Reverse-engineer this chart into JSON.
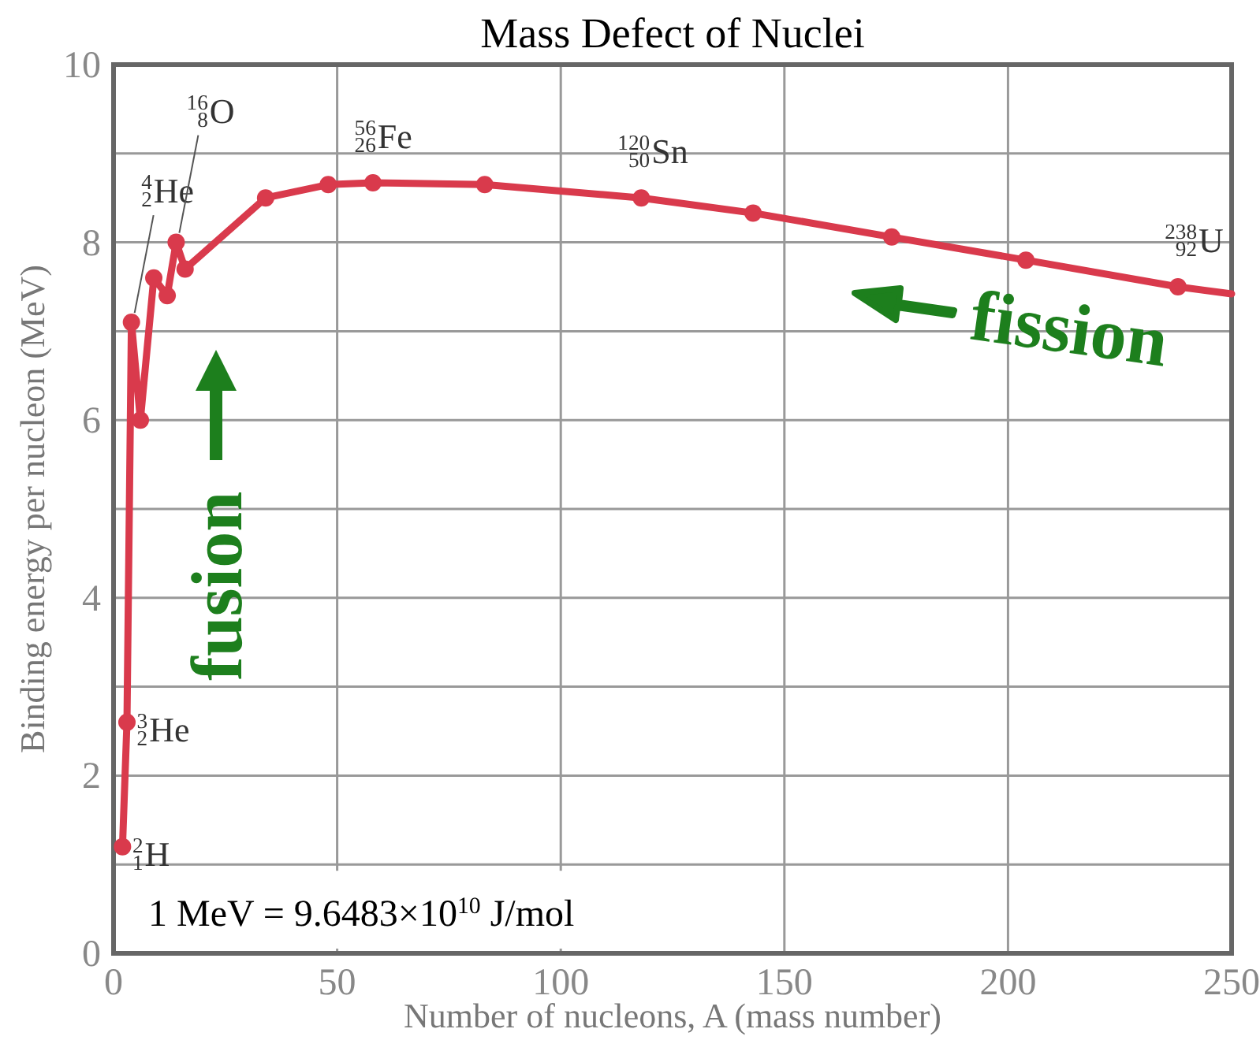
{
  "chart_data": {
    "type": "line",
    "title": "Mass Defect of Nuclei",
    "xlabel": "Number of nucleons, A (mass number)",
    "ylabel": "Binding energy per nucleon (MeV)",
    "xlim": [
      0,
      250
    ],
    "xticks": [
      0,
      50,
      100,
      150,
      200,
      250
    ],
    "ylim": [
      0,
      10
    ],
    "yticks": [
      0,
      {
        "value": 1,
        "label": null
      },
      2,
      {
        "value": 3,
        "label": null
      },
      4,
      {
        "value": 5,
        "label": null
      },
      6,
      {
        "value": 7,
        "label": null
      },
      8,
      {
        "value": 9,
        "label": null
      },
      10
    ],
    "grid": true,
    "marker": "circle",
    "line_style": "solid",
    "series": [
      {
        "color": "#d93a4c",
        "x": [
          2,
          3,
          4,
          6,
          9,
          12,
          14,
          16,
          34,
          48,
          58,
          83,
          118,
          143,
          174,
          204,
          238
        ],
        "values": [
          1.2,
          2.6,
          7.1,
          6.0,
          7.6,
          7.4,
          8.0,
          7.7,
          8.5,
          8.65,
          8.67,
          8.65,
          8.5,
          8.33,
          8.06,
          7.8,
          7.5
        ]
      },
      {
        "color": "#d93a4c",
        "marker": "none",
        "x": [
          238,
          250
        ],
        "values": [
          7.5,
          7.42
        ]
      }
    ],
    "annotations": [
      "1 MeV = 9.6483×10$^{10}$ J/mol",
      "fusion",
      "fission",
      {
        "text": "$^{2}$$_{1}$H",
        "x": 2,
        "y": 1.2
      },
      {
        "text": "$^{3}$$_{2}$He",
        "x": 3,
        "y": 2.6
      },
      {
        "text": "$^{4}$$_{2}$He",
        "x": 4,
        "y": 7.1
      },
      {
        "text": "$^{16}$$_{8}$O",
        "x": 14,
        "y": 8.0
      },
      {
        "text": "$^{56}$$_{26}$Fe",
        "x": 58,
        "y": 8.67
      },
      {
        "text": "$^{120}$$_{50}$Sn",
        "x": 118,
        "y": 8.5
      },
      {
        "text": "$^{238}$$_{92}$U",
        "x": 238,
        "y": 7.5
      }
    ]
  }
}
